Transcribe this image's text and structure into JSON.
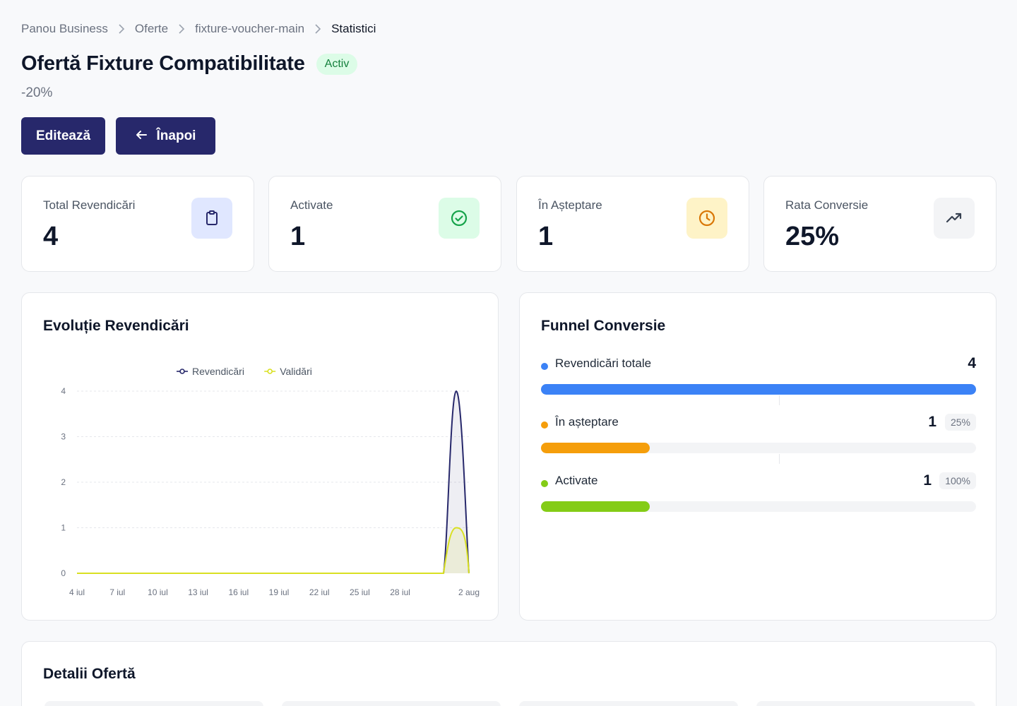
{
  "breadcrumb": [
    "Panou Business",
    "Oferte",
    "fixture-voucher-main",
    "Statistici"
  ],
  "header": {
    "title": "Ofertă Fixture Compatibilitate",
    "status": "Activ",
    "discount": "-20%"
  },
  "actions": {
    "edit_label": "Editează",
    "back_label": "Înapoi"
  },
  "stats": [
    {
      "label": "Total Revendicări",
      "value": "4",
      "icon": "clipboard-icon",
      "icon_bg": "#e0e7ff",
      "icon_color": "#27286b"
    },
    {
      "label": "Activate",
      "value": "1",
      "icon": "check-circle-icon",
      "icon_bg": "#dcfce7",
      "icon_color": "#16a34a"
    },
    {
      "label": "În Așteptare",
      "value": "1",
      "icon": "clock-icon",
      "icon_bg": "#fef3c7",
      "icon_color": "#d97706"
    },
    {
      "label": "Rata Conversie",
      "value": "25%",
      "icon": "trending-up-icon",
      "icon_bg": "#f3f4f6",
      "icon_color": "#374151"
    }
  ],
  "chart_panel": {
    "title": "Evoluție Revendicări"
  },
  "chart_data": {
    "type": "area",
    "x": [
      "4 iul",
      "7 iul",
      "10 iul",
      "13 iul",
      "16 iul",
      "19 iul",
      "22 iul",
      "25 iul",
      "28 iul",
      "2 aug"
    ],
    "x_last_is_gap": true,
    "series": [
      {
        "name": "Revendicări",
        "color": "#27286b",
        "values": [
          0,
          0,
          0,
          0,
          0,
          0,
          0,
          0,
          0,
          4
        ]
      },
      {
        "name": "Validări",
        "color": "#d9e021",
        "values": [
          0,
          0,
          0,
          0,
          0,
          0,
          0,
          0,
          0,
          1
        ]
      }
    ],
    "ylim": [
      0,
      4
    ],
    "yticks": [
      0,
      1,
      2,
      3,
      4
    ],
    "grid": true,
    "legend": "top-center"
  },
  "funnel": {
    "title": "Funnel Conversie",
    "rows": [
      {
        "label": "Revendicări totale",
        "count": "4",
        "pct": "",
        "color": "#3b82f6",
        "fill": 1.0
      },
      {
        "label": "În așteptare",
        "count": "1",
        "pct": "25%",
        "color": "#f59e0b",
        "fill": 0.25
      },
      {
        "label": "Activate",
        "count": "1",
        "pct": "100%",
        "color": "#84cc16",
        "fill": 0.25
      }
    ]
  },
  "details": {
    "title": "Detalii Ofertă"
  }
}
